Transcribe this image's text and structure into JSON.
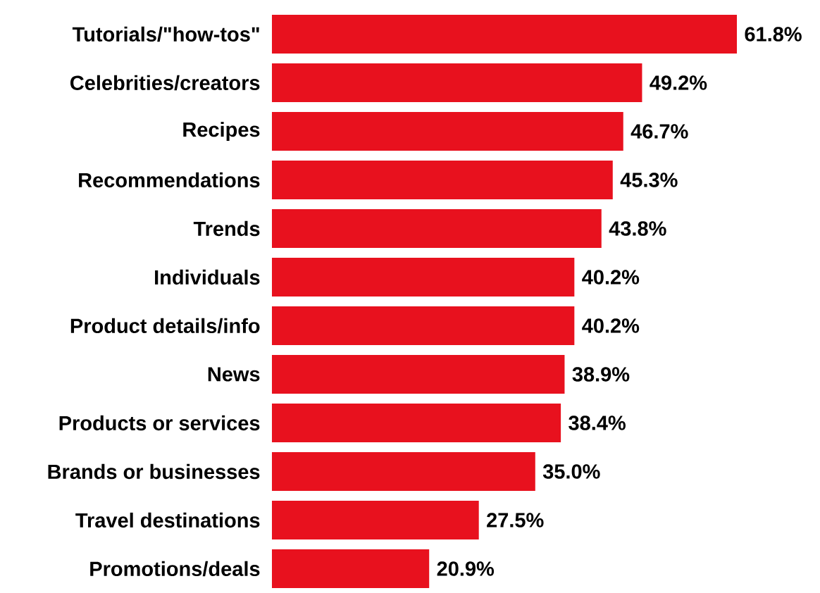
{
  "chart_data": {
    "type": "bar",
    "orientation": "horizontal",
    "categories": [
      "Tutorials/\"how-tos\"",
      "Celebrities/creators",
      "Recipes",
      "Recommendations",
      "Trends",
      "Individuals",
      "Product details/info",
      "News",
      "Products or services",
      "Brands or businesses",
      "Travel destinations",
      "Promotions/deals"
    ],
    "values": [
      61.8,
      49.2,
      46.7,
      45.3,
      43.8,
      40.2,
      40.2,
      38.9,
      38.4,
      35.0,
      27.5,
      20.9
    ],
    "value_labels": [
      "61.8%",
      "49.2%",
      "46.7%",
      "45.3%",
      "43.8%",
      "40.2%",
      "40.2%",
      "38.9%",
      "38.4%",
      "35.0%",
      "27.5%",
      "20.9%"
    ],
    "color": "#e8111e"
  }
}
